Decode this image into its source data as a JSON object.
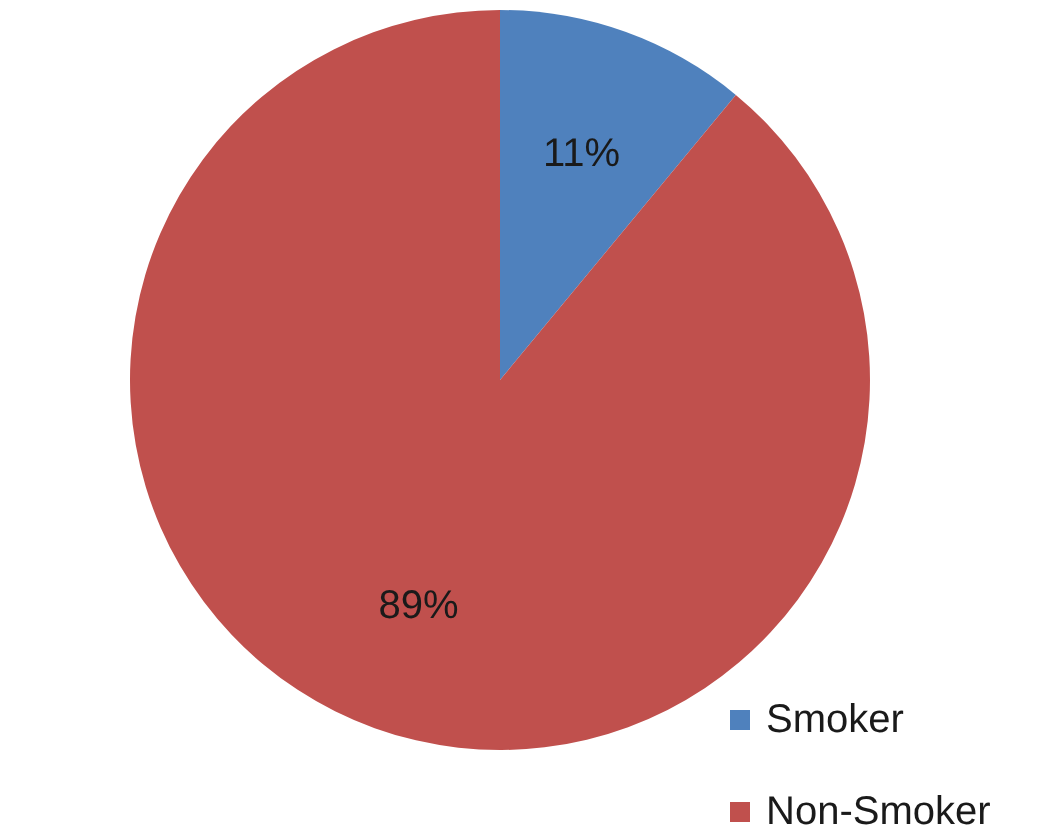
{
  "chart_data": {
    "type": "pie",
    "categories": [
      "Smoker",
      "Non-Smoker"
    ],
    "values": [
      11,
      89
    ],
    "colors": [
      "#4f81bd",
      "#c0504d"
    ],
    "value_labels": [
      "11%",
      "89%"
    ],
    "legend": "bottom right"
  }
}
